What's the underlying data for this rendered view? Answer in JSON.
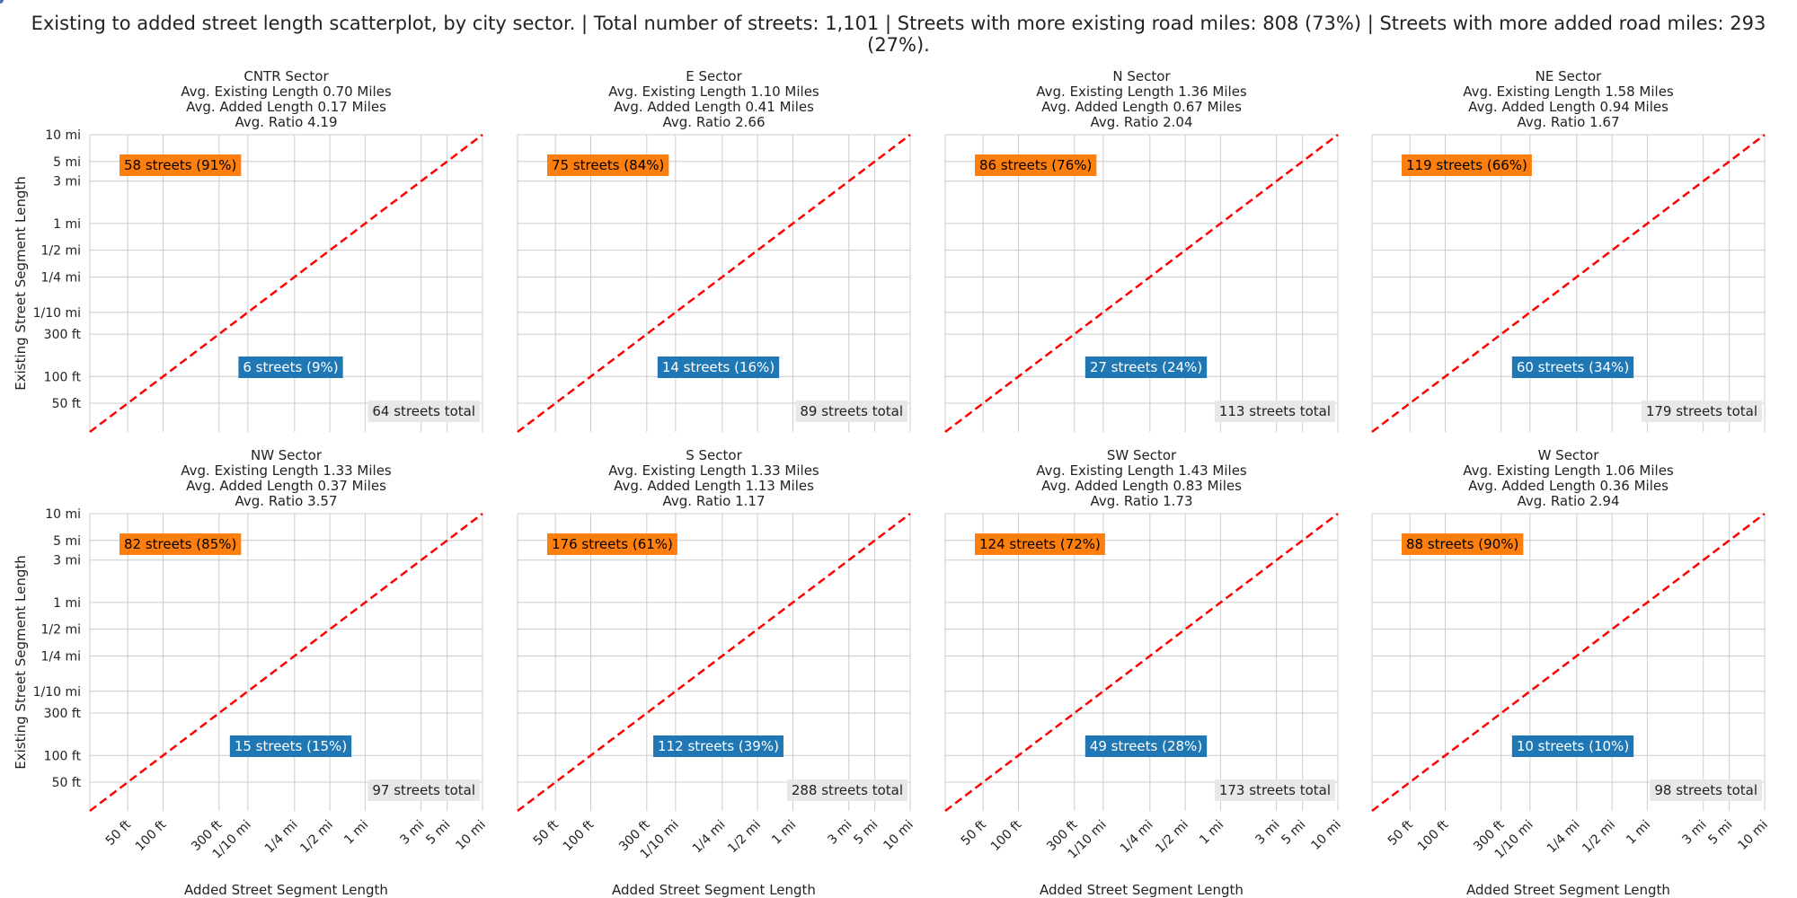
{
  "chart_data": {
    "type": "scatter",
    "title": "Existing to added street length scatterplot, by city sector. | Total number of streets: 1,101 | Streets with more existing road miles: 808 (73%) | Streets with more added road miles: 293 (27%).",
    "xlabel": "Added Street Segment Length",
    "ylabel": "Existing Street Segment Length",
    "x_ticks": [
      {
        "label": "50 ft",
        "miles": 0.00947
      },
      {
        "label": "100 ft",
        "miles": 0.01894
      },
      {
        "label": "300 ft",
        "miles": 0.05682
      },
      {
        "label": "1/10 mi",
        "miles": 0.1
      },
      {
        "label": "1/4 mi",
        "miles": 0.25
      },
      {
        "label": "1/2 mi",
        "miles": 0.5
      },
      {
        "label": "1 mi",
        "miles": 1
      },
      {
        "label": "3 mi",
        "miles": 3
      },
      {
        "label": "5 mi",
        "miles": 5
      },
      {
        "label": "10 mi",
        "miles": 10
      }
    ],
    "y_ticks": [
      {
        "label": "10 mi",
        "miles": 10
      },
      {
        "label": "5 mi",
        "miles": 5
      },
      {
        "label": "3 mi",
        "miles": 3
      },
      {
        "label": "1 mi",
        "miles": 1
      },
      {
        "label": "1/2 mi",
        "miles": 0.5
      },
      {
        "label": "1/4 mi",
        "miles": 0.25
      },
      {
        "label": "1/10 mi",
        "miles": 0.1
      },
      {
        "label": "300 ft",
        "miles": 0.05682
      },
      {
        "label": "100 ft",
        "miles": 0.01894
      },
      {
        "label": "50 ft",
        "miles": 0.00947
      }
    ],
    "axis_range_miles": [
      0.0045,
      10
    ],
    "reference_line": "y = x (red dashed)",
    "colors": {
      "existing": "#dd8452",
      "added": "#4c72b0",
      "existing_label_bg": "#ff7f0e",
      "added_label_bg": "#1f77b4",
      "total_bg": "#e8e8e8",
      "line": "#ff0000",
      "grid": "#cccccc"
    },
    "panels": [
      {
        "name": "CNTR Sector",
        "avg_existing": "Avg. Existing Length 0.70 Miles",
        "avg_added": "Avg. Added Length 0.17 Miles",
        "avg_ratio": "Avg. Ratio 4.19",
        "existing_label": "58 streets (91%)",
        "added_label": "6 streets (9%)",
        "total_label": "64 streets total",
        "n_existing": 58,
        "n_added": 6
      },
      {
        "name": "E Sector",
        "avg_existing": "Avg. Existing Length 1.10 Miles",
        "avg_added": "Avg. Added Length 0.41 Miles",
        "avg_ratio": "Avg. Ratio 2.66",
        "existing_label": "75 streets (84%)",
        "added_label": "14 streets (16%)",
        "total_label": "89 streets total",
        "n_existing": 75,
        "n_added": 14
      },
      {
        "name": "N Sector",
        "avg_existing": "Avg. Existing Length 1.36 Miles",
        "avg_added": "Avg. Added Length 0.67 Miles",
        "avg_ratio": "Avg. Ratio 2.04",
        "existing_label": "86 streets (76%)",
        "added_label": "27 streets (24%)",
        "total_label": "113 streets total",
        "n_existing": 86,
        "n_added": 27
      },
      {
        "name": "NE Sector",
        "avg_existing": "Avg. Existing Length 1.58 Miles",
        "avg_added": "Avg. Added Length 0.94 Miles",
        "avg_ratio": "Avg. Ratio 1.67",
        "existing_label": "119 streets (66%)",
        "added_label": "60 streets (34%)",
        "total_label": "179 streets total",
        "n_existing": 119,
        "n_added": 60
      },
      {
        "name": "NW Sector",
        "avg_existing": "Avg. Existing Length 1.33 Miles",
        "avg_added": "Avg. Added Length 0.37 Miles",
        "avg_ratio": "Avg. Ratio 3.57",
        "existing_label": "82 streets (85%)",
        "added_label": "15 streets (15%)",
        "total_label": "97 streets total",
        "n_existing": 82,
        "n_added": 15
      },
      {
        "name": "S Sector",
        "avg_existing": "Avg. Existing Length 1.33 Miles",
        "avg_added": "Avg. Added Length 1.13 Miles",
        "avg_ratio": "Avg. Ratio 1.17",
        "existing_label": "176 streets (61%)",
        "added_label": "112 streets (39%)",
        "total_label": "288 streets total",
        "n_existing": 176,
        "n_added": 112
      },
      {
        "name": "SW Sector",
        "avg_existing": "Avg. Existing Length 1.43 Miles",
        "avg_added": "Avg. Added Length 0.83 Miles",
        "avg_ratio": "Avg. Ratio 1.73",
        "existing_label": "124 streets (72%)",
        "added_label": "49 streets (28%)",
        "total_label": "173 streets total",
        "n_existing": 124,
        "n_added": 49
      },
      {
        "name": "W Sector",
        "avg_existing": "Avg. Existing Length 1.06 Miles",
        "avg_added": "Avg. Added Length 0.36 Miles",
        "avg_ratio": "Avg. Ratio 2.94",
        "existing_label": "88 streets (90%)",
        "added_label": "10 streets (10%)",
        "total_label": "98 streets total",
        "n_existing": 88,
        "n_added": 10
      }
    ]
  }
}
